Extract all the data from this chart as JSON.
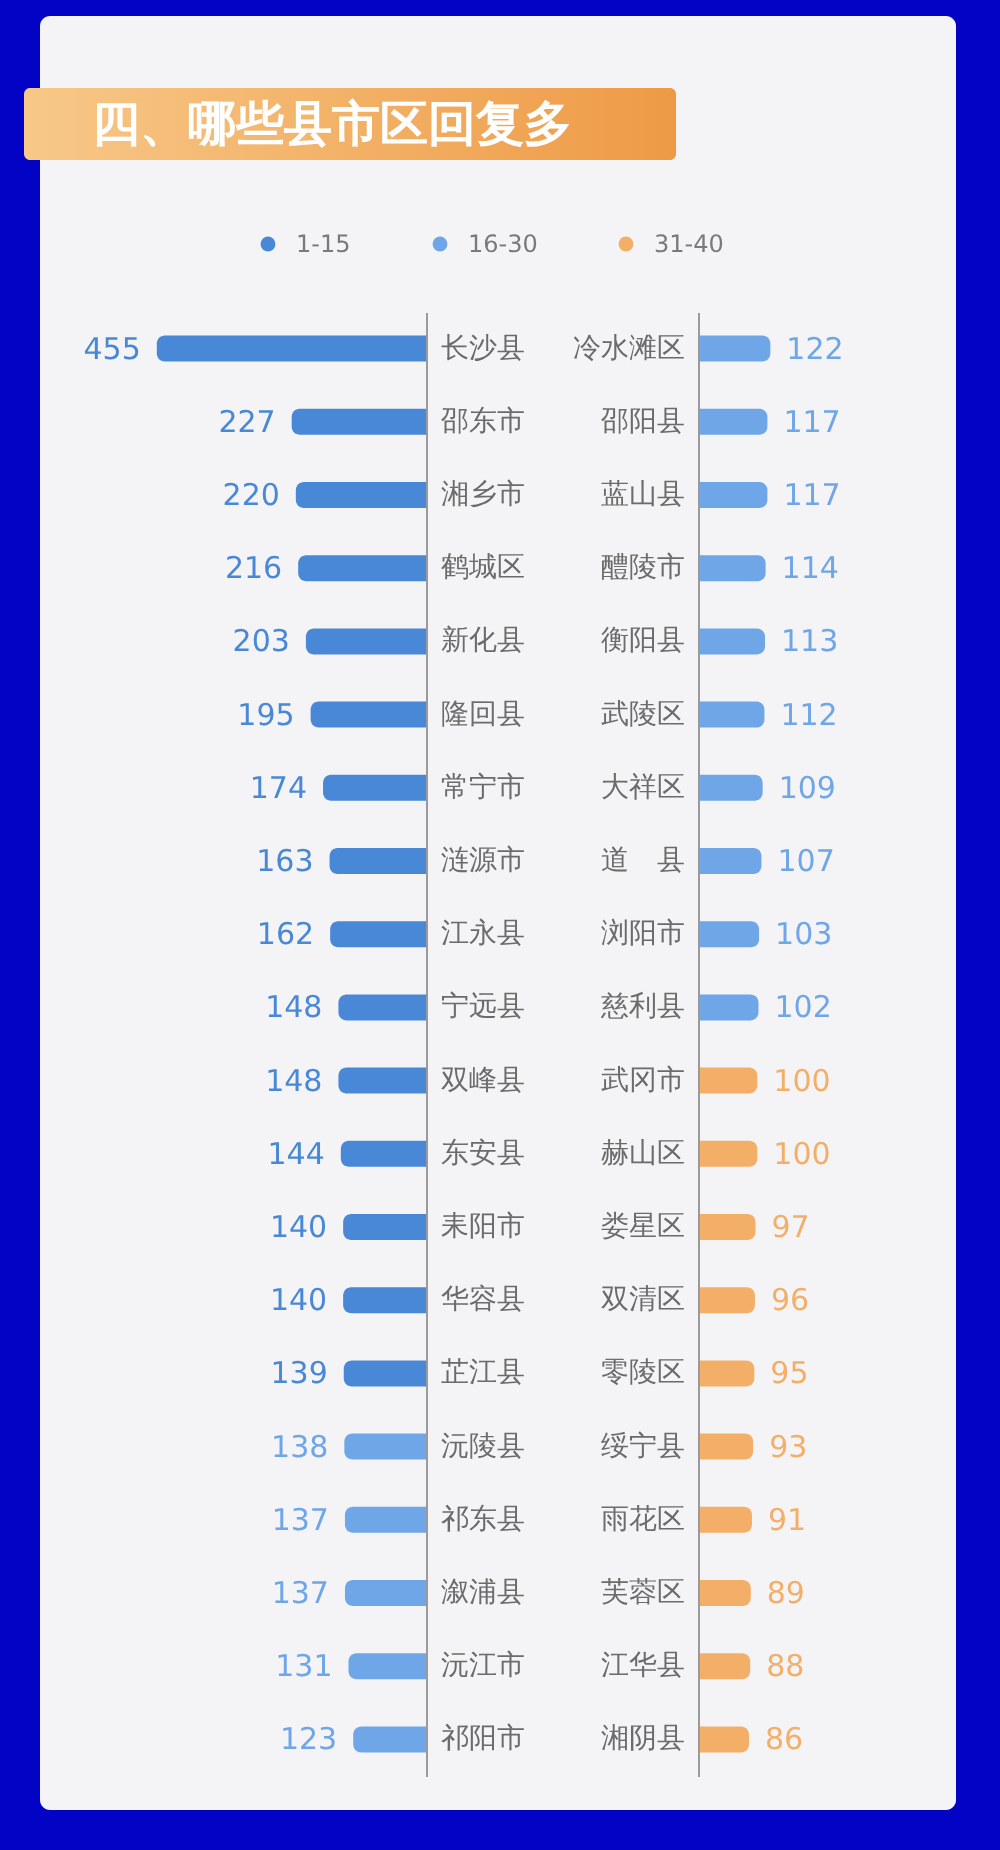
{
  "chart_data": [
    {
      "type": "bar",
      "orientation": "horizontal",
      "title": "四、哪些县市区回复多",
      "legend": "top",
      "categories": [
        "长沙县",
        "邵东市",
        "湘乡市",
        "鹤城区",
        "新化县",
        "隆回县",
        "常宁市",
        "涟源市",
        "江永县",
        "宁远县",
        "双峰县",
        "东安县",
        "耒阳市",
        "华容县",
        "芷江县",
        "沅陵县",
        "祁东县",
        "溆浦县",
        "沅江市",
        "祁阳市"
      ],
      "series": [
        {
          "name": "1-15",
          "color": "#4888d6",
          "values": [
            455,
            227,
            220,
            216,
            203,
            195,
            174,
            163,
            162,
            148,
            148,
            144,
            140,
            140,
            139,
            null,
            null,
            null,
            null,
            null
          ]
        },
        {
          "name": "16-30",
          "color": "#6ea6e8",
          "values": [
            null,
            null,
            null,
            null,
            null,
            null,
            null,
            null,
            null,
            null,
            null,
            null,
            null,
            null,
            null,
            138,
            137,
            137,
            131,
            123
          ]
        }
      ],
      "xlim": [
        720,
        0
      ],
      "tick_labels": "y",
      "data_labels": true
    },
    {
      "type": "bar",
      "orientation": "horizontal",
      "categories": [
        "冷水滩区",
        "邵阳县",
        "蓝山县",
        "醴陵市",
        "衡阳县",
        "武陵区",
        "大祥区",
        "道　县",
        "浏阳市",
        "慈利县",
        "武冈市",
        "赫山区",
        "娄星区",
        "双清区",
        "零陵区",
        "绥宁县",
        "雨花区",
        "芙蓉区",
        "江华县",
        "湘阴县"
      ],
      "series": [
        {
          "name": "16-30",
          "color": "#6ea6e8",
          "values": [
            122,
            117,
            117,
            114,
            113,
            112,
            109,
            107,
            103,
            102,
            null,
            null,
            null,
            null,
            null,
            null,
            null,
            null,
            null,
            null
          ]
        },
        {
          "name": "31-40",
          "color": "#f3af68",
          "values": [
            null,
            null,
            null,
            null,
            null,
            null,
            null,
            null,
            null,
            null,
            100,
            100,
            97,
            96,
            95,
            93,
            91,
            89,
            88,
            86
          ]
        }
      ],
      "xlim": [
        0,
        435
      ],
      "tick_labels": "y",
      "data_labels": true
    }
  ]
}
